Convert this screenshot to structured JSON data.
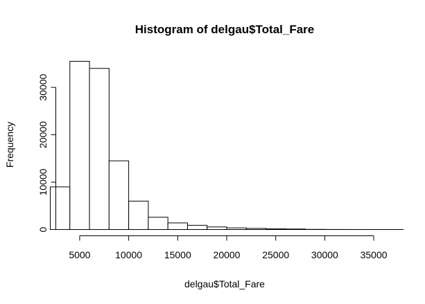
{
  "chart_data": {
    "type": "bar",
    "title": "Histogram of delgau$Total_Fare",
    "xlabel": "delgau$Total_Fare",
    "ylabel": "Frequency",
    "bins": [
      {
        "x0": 2000,
        "x1": 4000,
        "count": 9000
      },
      {
        "x0": 4000,
        "x1": 6000,
        "count": 35500
      },
      {
        "x0": 6000,
        "x1": 8000,
        "count": 34000
      },
      {
        "x0": 8000,
        "x1": 10000,
        "count": 14500
      },
      {
        "x0": 10000,
        "x1": 12000,
        "count": 6000
      },
      {
        "x0": 12000,
        "x1": 14000,
        "count": 2600
      },
      {
        "x0": 14000,
        "x1": 16000,
        "count": 1400
      },
      {
        "x0": 16000,
        "x1": 18000,
        "count": 900
      },
      {
        "x0": 18000,
        "x1": 20000,
        "count": 550
      },
      {
        "x0": 20000,
        "x1": 22000,
        "count": 350
      },
      {
        "x0": 22000,
        "x1": 24000,
        "count": 250
      },
      {
        "x0": 24000,
        "x1": 26000,
        "count": 170
      },
      {
        "x0": 26000,
        "x1": 28000,
        "count": 110
      },
      {
        "x0": 28000,
        "x1": 30000,
        "count": 40
      },
      {
        "x0": 30000,
        "x1": 32000,
        "count": 20
      },
      {
        "x0": 32000,
        "x1": 34000,
        "count": 10
      },
      {
        "x0": 34000,
        "x1": 36000,
        "count": 5
      },
      {
        "x0": 36000,
        "x1": 38000,
        "count": 3
      }
    ],
    "xlim": [
      2000,
      38000
    ],
    "ylim": [
      0,
      35500
    ],
    "xticks": [
      5000,
      10000,
      15000,
      20000,
      25000,
      30000,
      35000
    ],
    "xtick_labels": [
      "5000",
      "10000",
      "15000",
      "20000",
      "25000",
      "30000",
      "35000"
    ],
    "yticks": [
      0,
      10000,
      20000,
      30000
    ],
    "ytick_labels": [
      "0",
      "10000",
      "20000",
      "30000"
    ],
    "grid": false,
    "legend": "none",
    "bar_fill": "#ffffff",
    "bar_stroke": "#000000"
  }
}
